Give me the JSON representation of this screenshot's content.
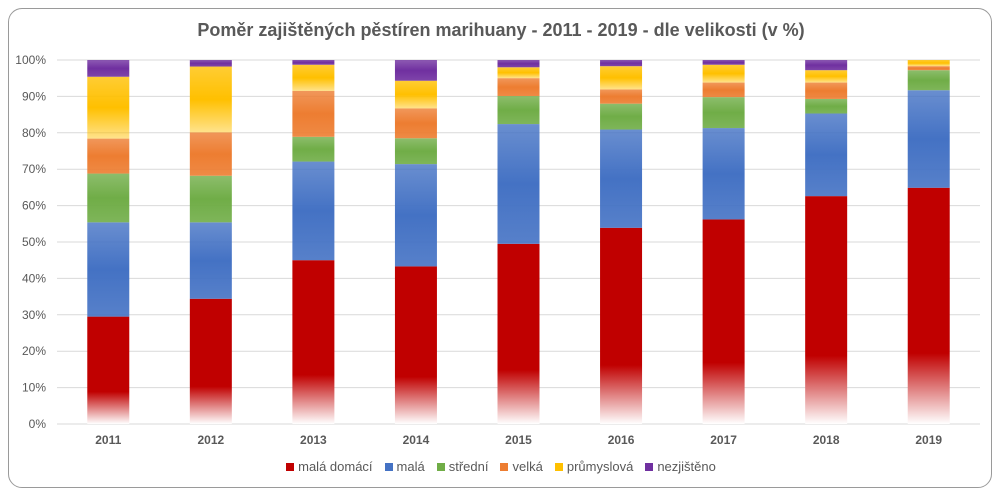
{
  "chart_data": {
    "type": "bar",
    "stacked": true,
    "title": "Poměr zajištěných pěstíren marihuany - 2011 - 2019 - dle velikosti (v %)",
    "categories": [
      "2011",
      "2012",
      "2013",
      "2014",
      "2015",
      "2016",
      "2017",
      "2018",
      "2019"
    ],
    "ylim": [
      0,
      100
    ],
    "yticks": [
      "0%",
      "10%",
      "20%",
      "30%",
      "40%",
      "50%",
      "60%",
      "70%",
      "80%",
      "90%",
      "100%"
    ],
    "grid": true,
    "legend_placement": "bottom",
    "series": [
      {
        "name": "malá domácí",
        "color": "#c00000",
        "values": [
          29.5,
          34.4,
          45.0,
          43.3,
          49.5,
          53.9,
          56.2,
          62.6,
          64.9
        ]
      },
      {
        "name": "malá",
        "color": "#4472c4",
        "values": [
          25.9,
          21.0,
          27.1,
          28.1,
          32.9,
          27.0,
          25.1,
          22.7,
          26.8
        ]
      },
      {
        "name": "střední",
        "color": "#70ad47",
        "values": [
          13.4,
          12.8,
          6.8,
          7.1,
          7.7,
          7.1,
          8.5,
          4.0,
          5.5
        ]
      },
      {
        "name": "velká",
        "color": "#ed7d31",
        "values": [
          9.6,
          11.9,
          12.6,
          8.2,
          4.9,
          3.9,
          4.0,
          4.5,
          1.1
        ]
      },
      {
        "name": "průmyslová",
        "color": "#ffc000",
        "values": [
          17.0,
          18.1,
          7.2,
          7.6,
          3.0,
          6.4,
          4.9,
          3.4,
          1.7
        ]
      },
      {
        "name": "nezjištěno",
        "color": "#7030a0",
        "values": [
          4.6,
          1.8,
          1.3,
          5.7,
          2.0,
          1.7,
          1.3,
          2.8,
          0.0
        ]
      }
    ]
  }
}
